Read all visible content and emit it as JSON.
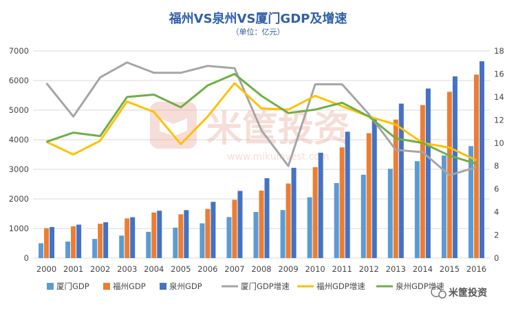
{
  "chart_data": {
    "type": "bar+line",
    "title": "福州VS泉州VS厦门GDP及增速",
    "subtitle": "（单位：亿元）",
    "categories": [
      "2000",
      "2001",
      "2002",
      "2003",
      "2004",
      "2005",
      "2006",
      "2007",
      "2008",
      "2009",
      "2010",
      "2011",
      "2012",
      "2013",
      "2014",
      "2015",
      "2016"
    ],
    "left_axis": {
      "min": 0,
      "max": 7000,
      "step": 1000
    },
    "right_axis": {
      "min": 0,
      "max": 18,
      "step": 2
    },
    "bar_series": [
      {
        "name": "厦门GDP",
        "color": "#5b9bd5",
        "values": [
          501,
          558,
          648,
          759,
          887,
          1029,
          1174,
          1387,
          1560,
          1623,
          2054,
          2535,
          2817,
          3018,
          3274,
          3466,
          3784
        ]
      },
      {
        "name": "福州GDP",
        "color": "#ed7d31",
        "values": [
          1010,
          1075,
          1160,
          1340,
          1540,
          1480,
          1660,
          1970,
          2280,
          2520,
          3070,
          3740,
          4220,
          4680,
          5170,
          5620,
          6200
        ]
      },
      {
        "name": "泉州GDP",
        "color": "#4472c4",
        "values": [
          1050,
          1130,
          1210,
          1380,
          1600,
          1620,
          1900,
          2270,
          2700,
          3050,
          3560,
          4270,
          4700,
          5220,
          5730,
          6140,
          6650
        ]
      }
    ],
    "line_series": [
      {
        "name": "厦门GDP增速",
        "color": "#a5a5a5",
        "values": [
          15.2,
          12.3,
          15.7,
          17.0,
          16.1,
          16.1,
          16.7,
          16.5,
          11.1,
          8.0,
          15.1,
          15.1,
          12.5,
          9.4,
          9.2,
          7.2,
          7.9
        ]
      },
      {
        "name": "福州GDP增速",
        "color": "#ffc000",
        "values": [
          10.1,
          9.0,
          10.2,
          13.6,
          12.7,
          9.9,
          12.3,
          15.2,
          13.0,
          12.9,
          14.1,
          13.2,
          12.3,
          11.6,
          10.0,
          9.6,
          8.5
        ]
      },
      {
        "name": "泉州GDP增速",
        "color": "#70ad47",
        "values": [
          10.1,
          10.9,
          10.6,
          14.0,
          14.2,
          13.1,
          15.0,
          16.0,
          14.1,
          12.6,
          12.9,
          13.5,
          12.3,
          10.4,
          10.0,
          8.9,
          8.2
        ]
      }
    ],
    "grid": true,
    "legend_position": "bottom"
  },
  "watermark": {
    "text": "米筐投资",
    "url": "www.mikuinvest.com"
  },
  "footer_brand": "米筐投资"
}
